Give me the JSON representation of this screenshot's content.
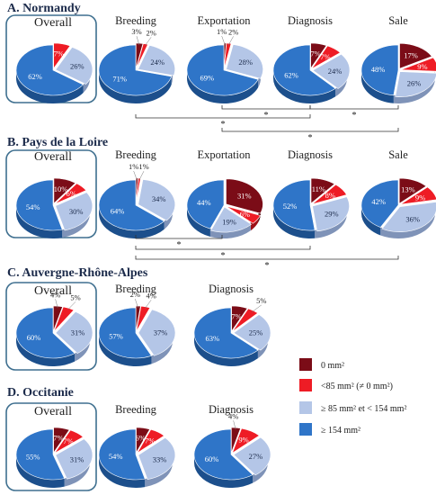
{
  "colors": {
    "0": "#7b0c17",
    "lt85": "#ee1c25",
    "85to154": "#b4c6e7",
    "ge154": "#2f75c8",
    "box": "#3e6f8f"
  },
  "legend": [
    {
      "key": "0",
      "label": "0 mm²"
    },
    {
      "key": "lt85",
      "label": "<85 mm² (≠ 0 mm²)"
    },
    {
      "key": "85to154",
      "label": "≥ 85 mm² et < 154 mm²"
    },
    {
      "key": "ge154",
      "label": "≥ 154 mm²"
    }
  ],
  "chart_data": [
    {
      "type": "pie",
      "title": "A. Normandy",
      "pies": [
        {
          "name": "Overall",
          "values": [
            0,
            7,
            26,
            62
          ],
          "labels": [
            "",
            "7%",
            "26%",
            "62%"
          ]
        },
        {
          "name": "Breeding",
          "values": [
            3,
            2,
            24,
            71
          ],
          "labels": [
            "3%",
            "2%",
            "24%",
            "71%"
          ]
        },
        {
          "name": "Exportation",
          "values": [
            1,
            2,
            28,
            69
          ],
          "labels": [
            "1%",
            "2%",
            "28%",
            "69%"
          ]
        },
        {
          "name": "Diagnosis",
          "values": [
            7,
            7,
            24,
            62
          ],
          "labels": [
            "7%",
            "7%",
            "24%",
            "62%"
          ]
        },
        {
          "name": "Sale",
          "values": [
            17,
            9,
            26,
            48
          ],
          "labels": [
            "17%",
            "9%",
            "26%",
            "48%"
          ]
        }
      ],
      "significance": [
        "*",
        "*",
        "*",
        "*"
      ]
    },
    {
      "type": "pie",
      "title": "B. Pays de la Loire",
      "pies": [
        {
          "name": "Overall",
          "values": [
            10,
            6,
            30,
            54
          ],
          "labels": [
            "10%",
            "6%",
            "30%",
            "54%"
          ]
        },
        {
          "name": "Breeding",
          "values": [
            1,
            1,
            34,
            64
          ],
          "labels": [
            "1%",
            "1%",
            "34%",
            "64%"
          ]
        },
        {
          "name": "Exportation",
          "values": [
            31,
            6,
            19,
            44
          ],
          "labels": [
            "31%",
            "6%",
            "19%",
            "44%"
          ]
        },
        {
          "name": "Diagnosis",
          "values": [
            11,
            8,
            29,
            52
          ],
          "labels": [
            "11%",
            "8%",
            "29%",
            "52%"
          ]
        },
        {
          "name": "Sale",
          "values": [
            13,
            9,
            36,
            42
          ],
          "labels": [
            "13%",
            "9%",
            "36%",
            "42%"
          ]
        }
      ],
      "significance": [
        "*",
        "*",
        "*"
      ]
    },
    {
      "type": "pie",
      "title": "C. Auvergne-Rhône-Alpes",
      "pies": [
        {
          "name": "Overall",
          "values": [
            4,
            5,
            31,
            60
          ],
          "labels": [
            "4%",
            "5%",
            "31%",
            "60%"
          ]
        },
        {
          "name": "Breeding",
          "values": [
            2,
            4,
            37,
            57
          ],
          "labels": [
            "2%",
            "4%",
            "37%",
            "57%"
          ]
        },
        {
          "name": "Diagnosis",
          "values": [
            7,
            5,
            25,
            63
          ],
          "labels": [
            "7%",
            "5%",
            "25%",
            "63%"
          ]
        }
      ],
      "significance": []
    },
    {
      "type": "pie",
      "title": "D. Occitanie",
      "pies": [
        {
          "name": "Overall",
          "values": [
            7,
            7,
            31,
            55
          ],
          "labels": [
            "7%",
            "7%",
            "31%",
            "55%"
          ]
        },
        {
          "name": "Breeding",
          "values": [
            6,
            7,
            33,
            54
          ],
          "labels": [
            "6%",
            "7%",
            "33%",
            "54%"
          ]
        },
        {
          "name": "Diagnosis",
          "values": [
            4,
            9,
            27,
            60
          ],
          "labels": [
            "4%",
            "9%",
            "27%",
            "60%"
          ]
        }
      ],
      "significance": []
    }
  ]
}
